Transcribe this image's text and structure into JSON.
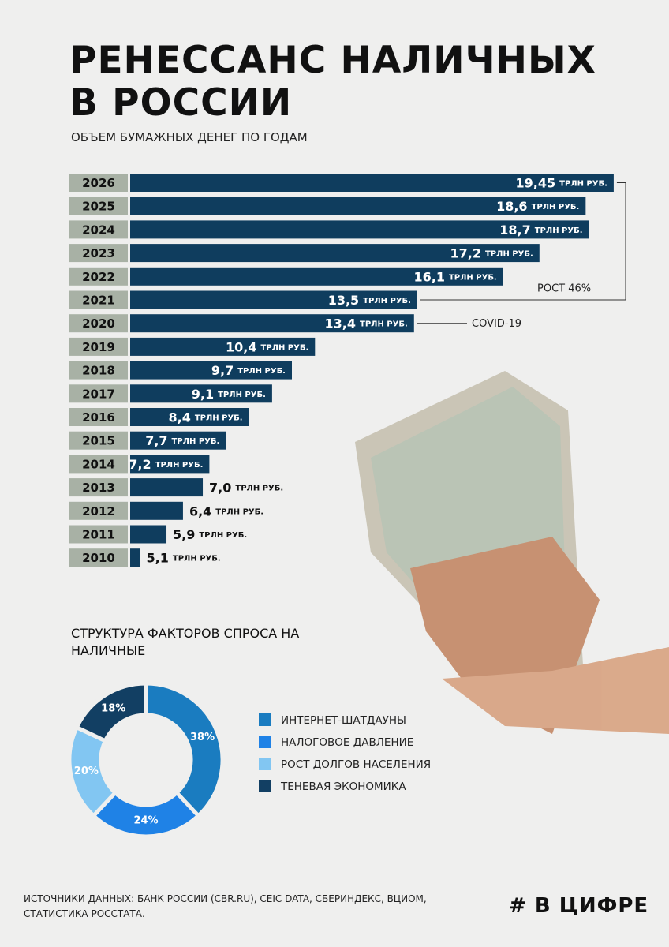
{
  "header": {
    "title": "РЕНЕССАНС НАЛИЧНЫХ В РОССИИ"
  },
  "chart_data": [
    {
      "type": "hbar",
      "subtitle": "ОБЪЕМ БУМАЖНЫХ ДЕНЕГ ПО ГОДАМ",
      "categories": [
        "2026",
        "2025",
        "2024",
        "2023",
        "2022",
        "2021",
        "2020",
        "2019",
        "2018",
        "2017",
        "2016",
        "2015",
        "2014",
        "2013",
        "2012",
        "2011",
        "2010"
      ],
      "values": [
        19.45,
        18.6,
        18.7,
        17.2,
        16.1,
        13.5,
        13.4,
        10.4,
        9.7,
        9.1,
        8.4,
        7.7,
        7.2,
        7.0,
        6.4,
        5.9,
        5.1
      ],
      "value_labels": [
        "19,45",
        "18,6",
        "18,7",
        "17,2",
        "16,1",
        "13,5",
        "13,4",
        "10,4",
        "9,7",
        "9,1",
        "8,4",
        "7,7",
        "7,2",
        "7,0",
        "6,4",
        "5,9",
        "5,1"
      ],
      "unit_label": "ТРЛН РУБ.",
      "color": "#0f3d5e",
      "xlim": [
        4.8,
        19.5
      ],
      "annotations": [
        "РОСТ 46%",
        "COVID-19"
      ]
    },
    {
      "type": "donut",
      "title": "СТРУКТУРА ФАКТОРОВ СПРОСА НА НАЛИЧНЫЕ",
      "categories": [
        "ИНТЕРНЕТ-ШАТДАУНЫ",
        "НАЛОГОВОЕ ДАВЛЕНИЕ",
        "РОСТ ДОЛГОВ НАСЕЛЕНИЯ",
        "ТЕНЕВАЯ ЭКОНОМИКА"
      ],
      "values": [
        38,
        24,
        20,
        18
      ],
      "value_labels": [
        "38%",
        "24%",
        "20%",
        "18%"
      ],
      "colors": [
        "#1a7cc0",
        "#1f82e6",
        "#82c6f2",
        "#123f63"
      ]
    }
  ],
  "footer": {
    "sources": "ИСТОЧНИКИ ДАННЫХ: БАНК РОССИИ (CBR.RU), CEIC DATA, СБЕРИНДЕКС, ВЦИОМ, СТАТИСТИКА РОССТАТА.",
    "logo": "# В ЦИФРЕ"
  }
}
